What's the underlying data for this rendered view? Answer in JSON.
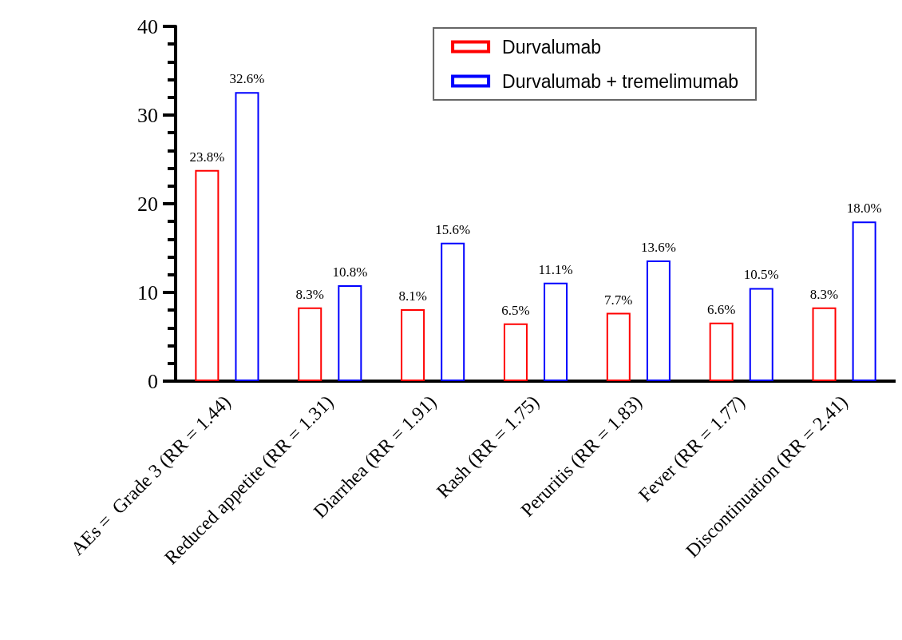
{
  "chart_data": {
    "type": "bar",
    "categories": [
      "AEs =  Grade 3 (RR = 1.44)",
      "Reduced appetite (RR = 1.31)",
      "Diarrhea (RR = 1.91)",
      "Rash (RR = 1.75)",
      "Peruritis (RR = 1.83)",
      "Fever (RR = 1.77)",
      "Discontinuation (RR = 2.41)"
    ],
    "series": [
      {
        "name": "Durvalumab",
        "color": "#ff0000",
        "values": [
          23.8,
          8.3,
          8.1,
          6.5,
          7.7,
          6.6,
          8.3
        ],
        "value_labels": [
          "23.8%",
          "8.3%",
          "8.1%",
          "6.5%",
          "7.7%",
          "6.6%",
          "8.3%"
        ]
      },
      {
        "name": "Durvalumab + tremelimumab",
        "color": "#0000ff",
        "values": [
          32.6,
          10.8,
          15.6,
          11.1,
          13.6,
          10.5,
          18.0
        ],
        "value_labels": [
          "32.6%",
          "10.8%",
          "15.6%",
          "11.1%",
          "13.6%",
          "10.5%",
          "18.0%"
        ]
      }
    ],
    "ylim": [
      0,
      40
    ],
    "yticks": [
      0,
      10,
      20,
      30,
      40
    ],
    "grid": false,
    "legend": "top right"
  }
}
